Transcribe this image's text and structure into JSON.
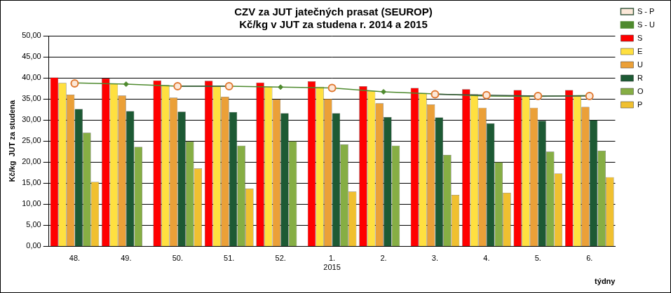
{
  "chart_data": {
    "type": "bar",
    "title": "CZV za JUT jatečných prasat (SEUROP)",
    "subtitle": "Kč/kg v JUT za studena r. 2014 a 2015",
    "y_label": "Kč/kg  JUT za studena",
    "x_label": "týdny",
    "categories": [
      "48.",
      "49.",
      "50.",
      "51.",
      "52.",
      "1.",
      "2.",
      "3.",
      "4.",
      "5.",
      "6."
    ],
    "annotations": [
      {
        "text": "2015",
        "category": "1."
      }
    ],
    "series": [
      {
        "name": "S",
        "color": "#FF0000",
        "values": [
          40.1,
          39.9,
          39.4,
          39.3,
          38.9,
          39.2,
          38.0,
          37.6,
          37.3,
          37.1,
          37.1
        ]
      },
      {
        "name": "E",
        "color": "#FFE040",
        "values": [
          38.8,
          38.7,
          38.3,
          38.1,
          37.9,
          37.9,
          36.9,
          36.4,
          36.1,
          35.8,
          35.9
        ]
      },
      {
        "name": "U",
        "color": "#EBA038",
        "values": [
          36.0,
          35.8,
          35.3,
          35.5,
          34.9,
          35.0,
          34.0,
          33.7,
          32.9,
          32.9,
          33.1
        ]
      },
      {
        "name": "R",
        "color": "#1D5A34",
        "values": [
          32.6,
          32.1,
          32.0,
          31.9,
          31.6,
          31.6,
          30.7,
          30.6,
          29.2,
          29.8,
          30.0
        ]
      },
      {
        "name": "O",
        "color": "#86AE44",
        "values": [
          27.0,
          23.6,
          24.9,
          23.9,
          25.0,
          24.2,
          23.9,
          21.7,
          20.0,
          22.5,
          22.7
        ]
      },
      {
        "name": "P",
        "color": "#F0C030",
        "values": [
          15.3,
          null,
          18.5,
          13.7,
          null,
          13.0,
          null,
          12.2,
          12.7,
          17.3,
          16.4
        ]
      },
      {
        "name": "S - P",
        "type": "line",
        "marker": "circle",
        "color": "#E07830",
        "values": [
          38.7,
          null,
          38.0,
          38.0,
          null,
          37.6,
          null,
          36.1,
          35.9,
          35.7,
          35.7
        ]
      },
      {
        "name": "S - U",
        "type": "line",
        "marker": "diamond",
        "color": "#4E8A2E",
        "values": [
          38.8,
          38.5,
          38.0,
          38.0,
          37.8,
          37.6,
          36.7,
          36.2,
          35.7,
          35.6,
          35.8
        ]
      }
    ],
    "ylim": [
      0,
      50
    ],
    "yticks": [
      {
        "value": 0,
        "label": "0,00"
      },
      {
        "value": 5,
        "label": "5,00"
      },
      {
        "value": 10,
        "label": "10,00"
      },
      {
        "value": 15,
        "label": "15,00"
      },
      {
        "value": 20,
        "label": "20,00"
      },
      {
        "value": 25,
        "label": "25,00"
      },
      {
        "value": 30,
        "label": "30,00"
      },
      {
        "value": 35,
        "label": "35,00"
      },
      {
        "value": 40,
        "label": "40,00"
      },
      {
        "value": 45,
        "label": "45,00"
      },
      {
        "value": 50,
        "label": "50,00"
      }
    ],
    "grid": true,
    "legend": "right"
  }
}
